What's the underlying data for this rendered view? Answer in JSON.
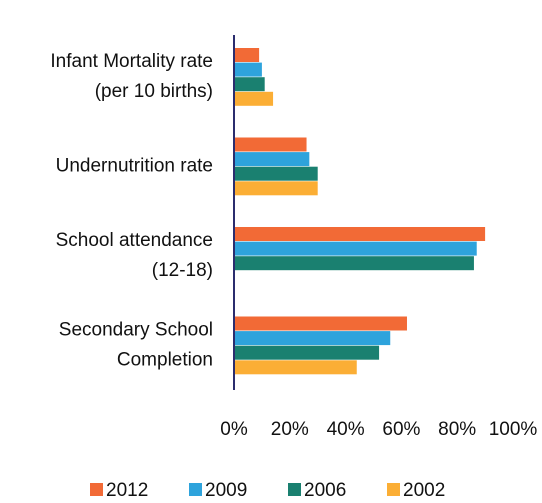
{
  "chart_data": {
    "type": "hbar",
    "categories": [
      [
        "Infant Mortality rate",
        "(per  10 births)"
      ],
      [
        "Undernutrition rate"
      ],
      [
        "School attendance",
        "(12-18)"
      ],
      [
        "Secondary School",
        "Completion"
      ]
    ],
    "series": [
      {
        "name": "2012",
        "color": "#f26a36",
        "values": [
          9,
          26,
          90,
          62
        ]
      },
      {
        "name": "2009",
        "color": "#2ea3dc",
        "values": [
          10,
          27,
          87,
          56
        ]
      },
      {
        "name": "2006",
        "color": "#1a8070",
        "values": [
          11,
          30,
          86,
          52
        ]
      },
      {
        "name": "2002",
        "color": "#fbae35",
        "values": [
          14,
          30,
          null,
          44
        ]
      }
    ],
    "xlim": [
      0,
      100
    ],
    "xticks": [
      {
        "value": 0,
        "label": "0%"
      },
      {
        "value": 20,
        "label": "20%"
      },
      {
        "value": 40,
        "label": "40%"
      },
      {
        "value": 60,
        "label": "60%"
      },
      {
        "value": 80,
        "label": "80%"
      },
      {
        "value": 100,
        "label": "100%"
      }
    ],
    "legend": "bottom"
  }
}
